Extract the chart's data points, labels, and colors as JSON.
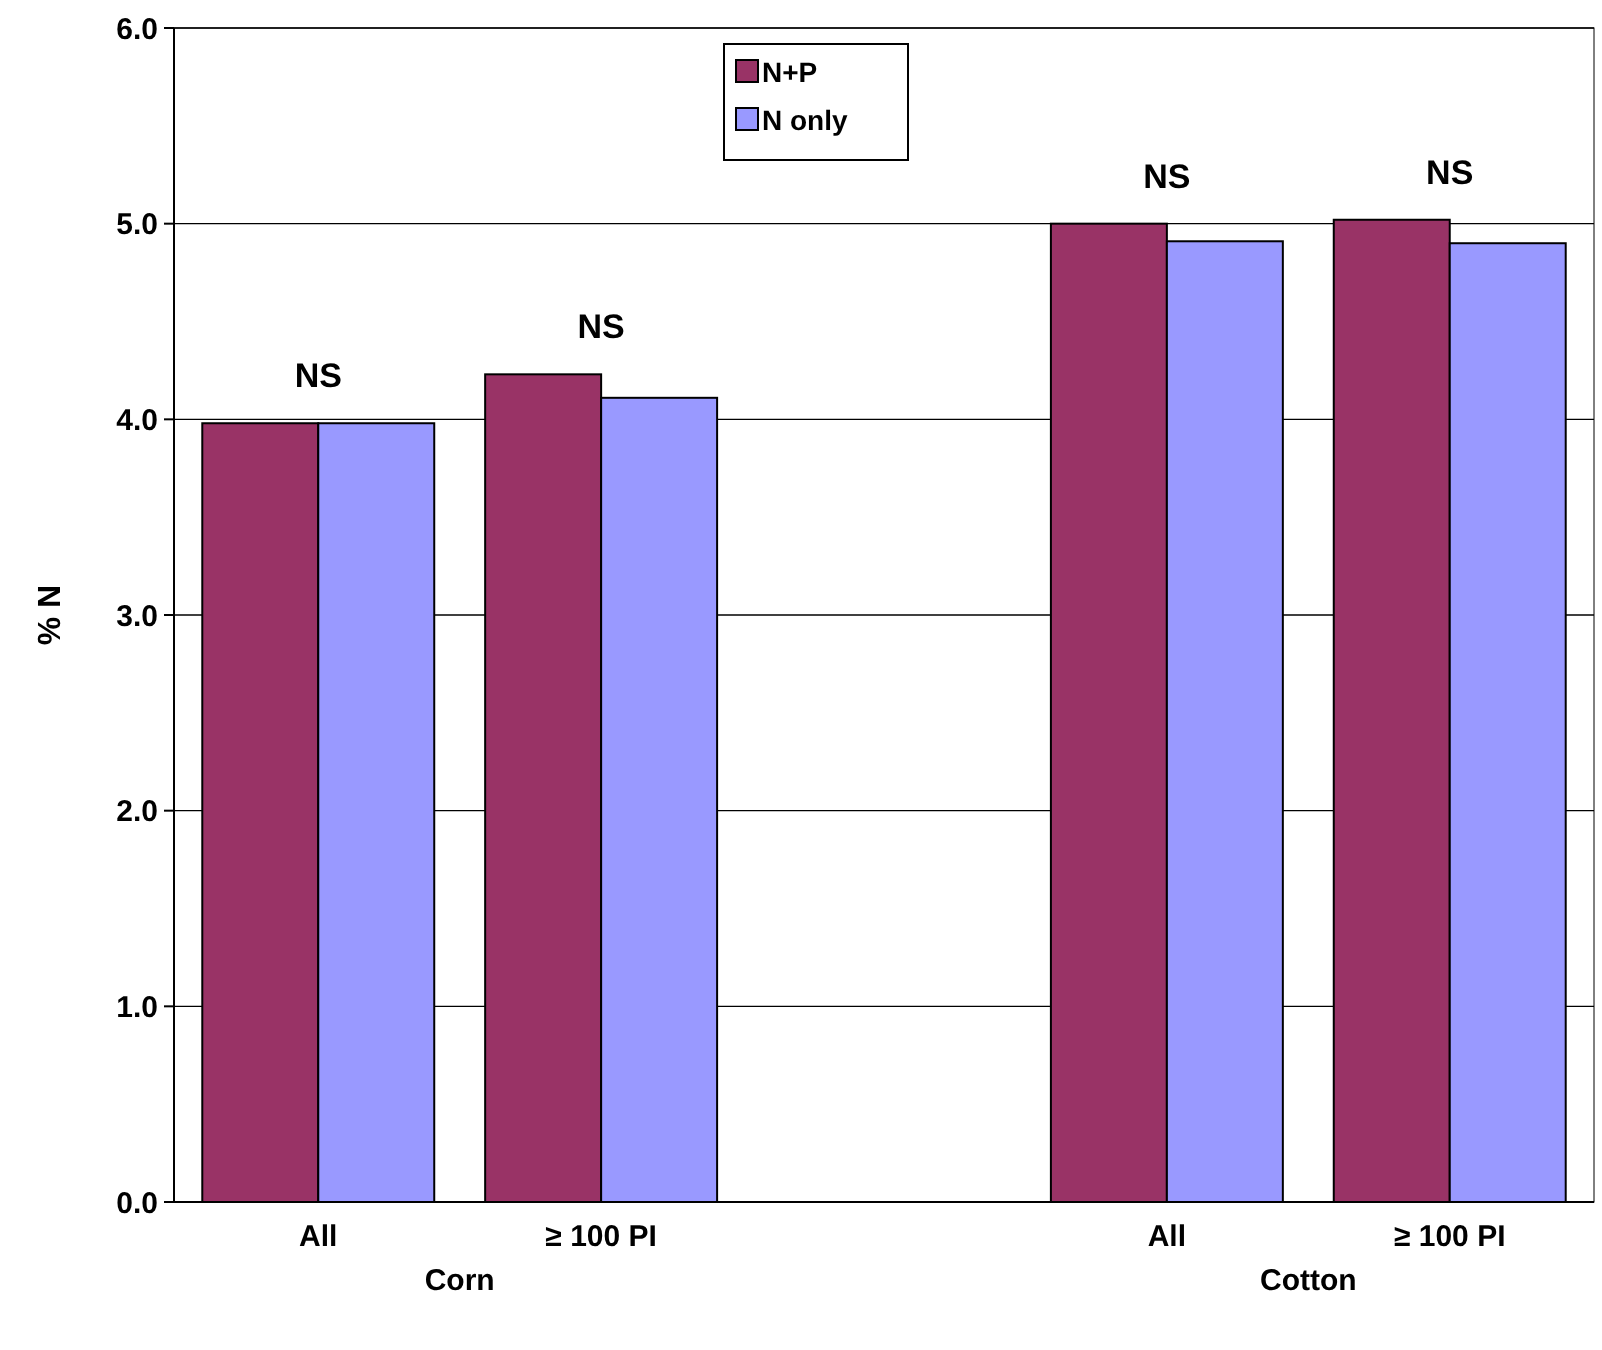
{
  "chart_data": {
    "type": "bar",
    "ylabel": "% N",
    "categories": [
      "All",
      "≥ 100 PI",
      null,
      "All",
      "≥ 100 PI"
    ],
    "series": [
      {
        "name": "N+P",
        "color": "#993366",
        "values": [
          3.98,
          4.23,
          null,
          5.0,
          5.02
        ]
      },
      {
        "name": "N only",
        "color": "#9999ff",
        "values": [
          3.98,
          4.11,
          null,
          4.91,
          4.9
        ]
      }
    ],
    "ylim": [
      0,
      6
    ],
    "yticks": [
      {
        "value": 0,
        "label": "0.0"
      },
      {
        "value": 1,
        "label": "1.0"
      },
      {
        "value": 2,
        "label": "2.0"
      },
      {
        "value": 3,
        "label": "3.0"
      },
      {
        "value": 4,
        "label": "4.0"
      },
      {
        "value": 5,
        "label": "5.0"
      },
      {
        "value": 6,
        "label": "6.0"
      }
    ],
    "grid": "y",
    "legend": "top",
    "annotations": [
      "NS",
      "NS",
      "NS",
      "NS",
      "Corn",
      "Cotton"
    ]
  }
}
